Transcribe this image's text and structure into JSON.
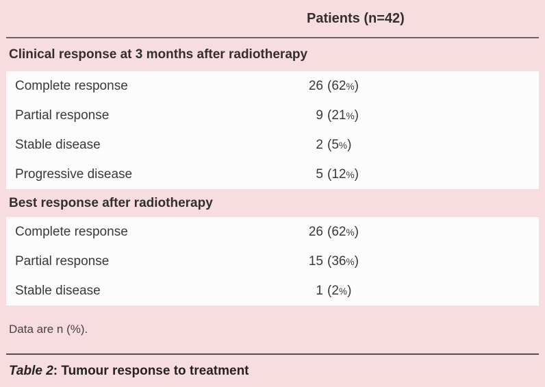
{
  "table": {
    "header": {
      "column_label": "Patients (n=42)"
    },
    "sections": [
      {
        "title": "Clinical response at 3 months after radiotherapy",
        "rows": [
          {
            "label": "Complete response",
            "n": "26",
            "pct": "62"
          },
          {
            "label": "Partial response",
            "n": "9",
            "pct": "21"
          },
          {
            "label": "Stable disease",
            "n": "2",
            "pct": "5"
          },
          {
            "label": "Progressive disease",
            "n": "5",
            "pct": "12"
          }
        ]
      },
      {
        "title": "Best response after radiotherapy",
        "rows": [
          {
            "label": "Complete response",
            "n": "26",
            "pct": "62"
          },
          {
            "label": "Partial response",
            "n": "15",
            "pct": "36"
          },
          {
            "label": "Stable disease",
            "n": "1",
            "pct": "2"
          }
        ]
      }
    ],
    "footnote": "Data are n (%).",
    "caption": {
      "label": "Table 2",
      "separator": ": ",
      "title": "Tumour response to treatment"
    },
    "format": {
      "open_paren": "(",
      "close_paren": ")",
      "percent_sign": "%"
    }
  },
  "colors": {
    "background_pink": "#f7dde0",
    "row_white": "#fdfcfc",
    "rule_dark": "#6e6167",
    "text_dark": "#3c3738"
  }
}
